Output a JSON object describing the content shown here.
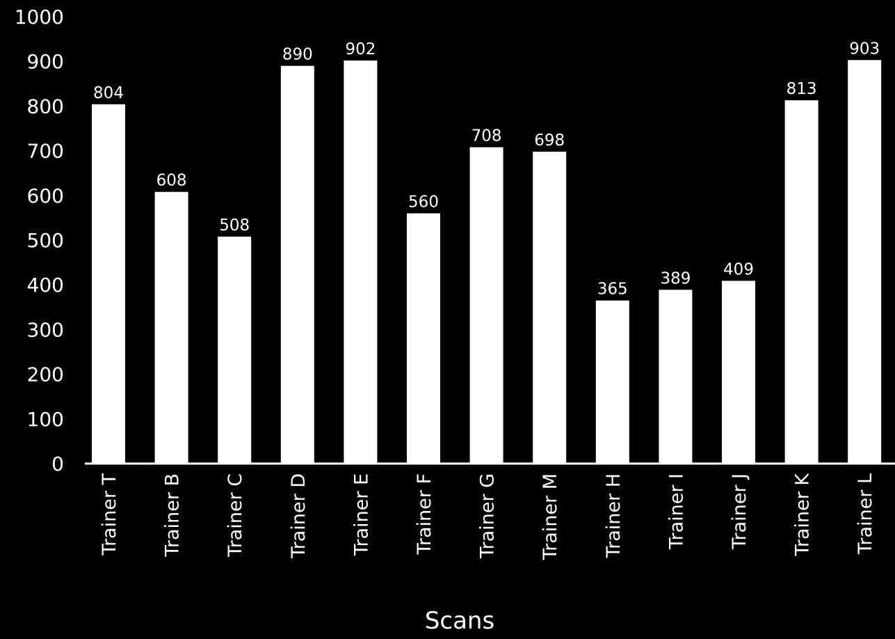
{
  "chart_data": {
    "type": "bar",
    "title": "",
    "xlabel": "Scans",
    "ylabel": "",
    "categories": [
      "Trainer T",
      "Trainer B",
      "Trainer C",
      "Trainer D",
      "Trainer E",
      "Trainer F",
      "Trainer G",
      "Trainer M",
      "Trainer H",
      "Trainer I",
      "Trainer J",
      "Trainer K",
      "Trainer L"
    ],
    "values": [
      804,
      608,
      508,
      890,
      902,
      560,
      708,
      698,
      365,
      389,
      409,
      813,
      903
    ],
    "yticks": [
      "0",
      "100",
      "200",
      "300",
      "400",
      "500",
      "600",
      "700",
      "800",
      "900",
      "1000"
    ],
    "ylim": [
      0,
      1000
    ],
    "grid": false,
    "legend": "none",
    "colors": {
      "background": "#000000",
      "bar": "#ffffff",
      "text": "#ffffff",
      "axis": "#ffffff"
    }
  }
}
